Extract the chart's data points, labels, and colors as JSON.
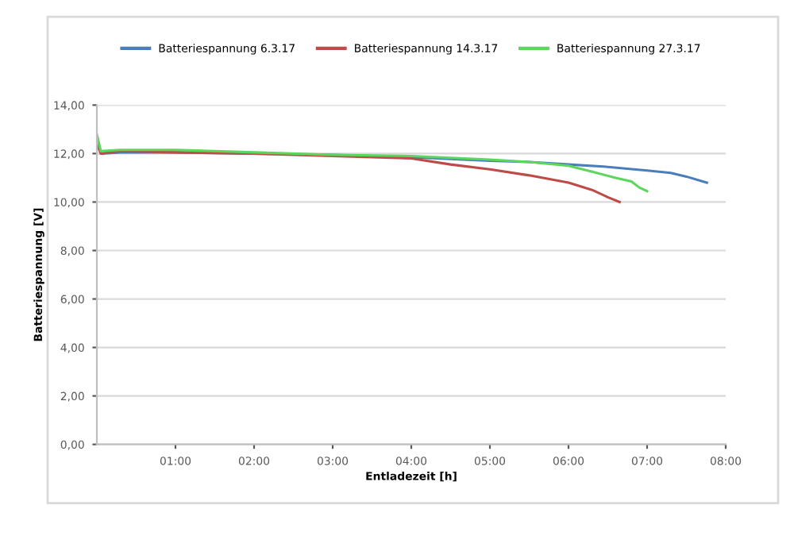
{
  "chart_data": {
    "type": "line",
    "xlabel": "Entladezeit [h]",
    "ylabel": "Batteriespannung [V]",
    "xlim": [
      0,
      8
    ],
    "xticks": [
      {
        "value": 1,
        "label": "01:00"
      },
      {
        "value": 2,
        "label": "02:00"
      },
      {
        "value": 3,
        "label": "03:00"
      },
      {
        "value": 4,
        "label": "04:00"
      },
      {
        "value": 5,
        "label": "05:00"
      },
      {
        "value": 6,
        "label": "06:00"
      },
      {
        "value": 7,
        "label": "07:00"
      },
      {
        "value": 8,
        "label": "08:00"
      }
    ],
    "ylim": [
      0,
      14
    ],
    "yticks": [
      {
        "value": 0,
        "label": "0,00"
      },
      {
        "value": 2,
        "label": "2,00"
      },
      {
        "value": 4,
        "label": "4,00"
      },
      {
        "value": 6,
        "label": "6,00"
      },
      {
        "value": 8,
        "label": "8,00"
      },
      {
        "value": 10,
        "label": "10,00"
      },
      {
        "value": 12,
        "label": "12,00"
      },
      {
        "value": 14,
        "label": "14,00"
      }
    ],
    "grid": "y",
    "legend": "top",
    "marker": "none",
    "line_style": "solid",
    "series": [
      {
        "name": "Batteriespannung 6.3.17",
        "color": "#4a7ebb",
        "x": [
          0,
          0.05,
          0.3,
          1,
          2,
          3,
          4,
          5,
          5.5,
          6,
          6.5,
          7,
          7.3,
          7.5,
          7.76
        ],
        "values": [
          12.5,
          12.0,
          12.05,
          12.05,
          12.0,
          11.95,
          11.85,
          11.7,
          11.65,
          11.55,
          11.45,
          11.3,
          11.2,
          11.05,
          10.8
        ]
      },
      {
        "name": "Batteriespannung 14.3.17",
        "color": "#be4b48",
        "x": [
          0,
          0.05,
          0.3,
          1,
          2,
          3,
          4,
          4.5,
          5,
          5.5,
          6,
          6.3,
          6.5,
          6.65
        ],
        "values": [
          12.4,
          12.0,
          12.1,
          12.05,
          12.0,
          11.9,
          11.8,
          11.55,
          11.35,
          11.1,
          10.8,
          10.5,
          10.2,
          10.0
        ]
      },
      {
        "name": "Batteriespannung 27.3.17",
        "color": "#5cd65c",
        "x": [
          0,
          0.05,
          0.3,
          1,
          2,
          3,
          4,
          5,
          5.5,
          6,
          6.3,
          6.6,
          6.8,
          6.9,
          7.0
        ],
        "values": [
          12.8,
          12.1,
          12.15,
          12.15,
          12.05,
          11.95,
          11.9,
          11.75,
          11.65,
          11.5,
          11.25,
          11.0,
          10.85,
          10.6,
          10.45
        ]
      }
    ]
  }
}
